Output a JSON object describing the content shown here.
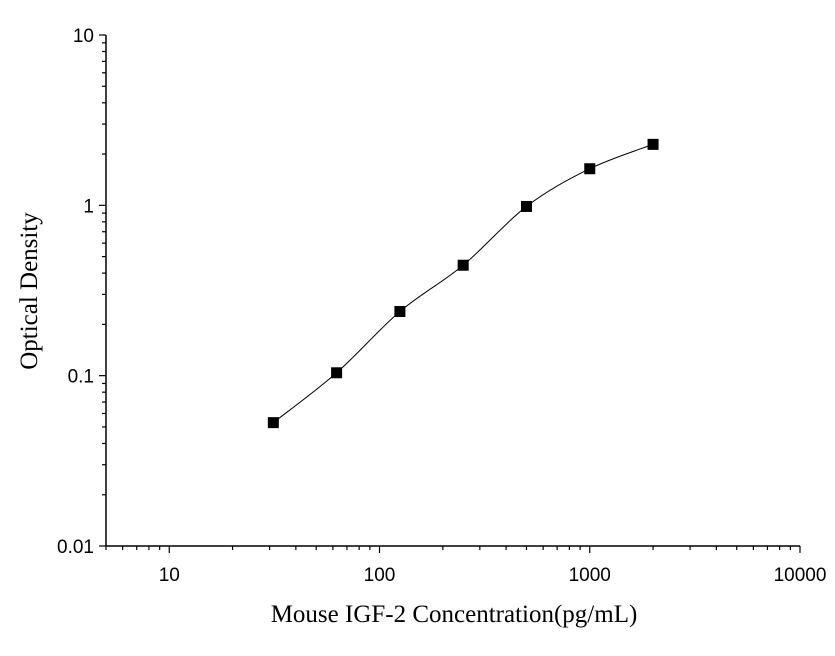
{
  "chart_data": {
    "type": "scatter",
    "title": "",
    "xlabel": "Mouse IGF-2 Concentration(pg/mL)",
    "ylabel": "Optical Density",
    "xscale": "log",
    "yscale": "log",
    "xlim": [
      5,
      10000
    ],
    "ylim": [
      0.01,
      10
    ],
    "grid": false,
    "legend": "none",
    "xticks": [
      {
        "value": 10,
        "label": "10"
      },
      {
        "value": 100,
        "label": "100"
      },
      {
        "value": 1000,
        "label": "1000"
      },
      {
        "value": 10000,
        "label": "10000"
      }
    ],
    "yticks": [
      {
        "value": 0.01,
        "label": "0.01"
      },
      {
        "value": 0.1,
        "label": "0.1"
      },
      {
        "value": 1,
        "label": "1"
      },
      {
        "value": 10,
        "label": "10"
      }
    ],
    "series": [
      {
        "x": [
          31.25,
          62.5,
          125,
          250,
          500,
          1000,
          2000
        ],
        "y": [
          0.053,
          0.104,
          0.238,
          0.445,
          0.985,
          1.64,
          2.28
        ],
        "marker": "square",
        "color": "#000000",
        "fit_line": "four-parameter logistic"
      }
    ]
  }
}
